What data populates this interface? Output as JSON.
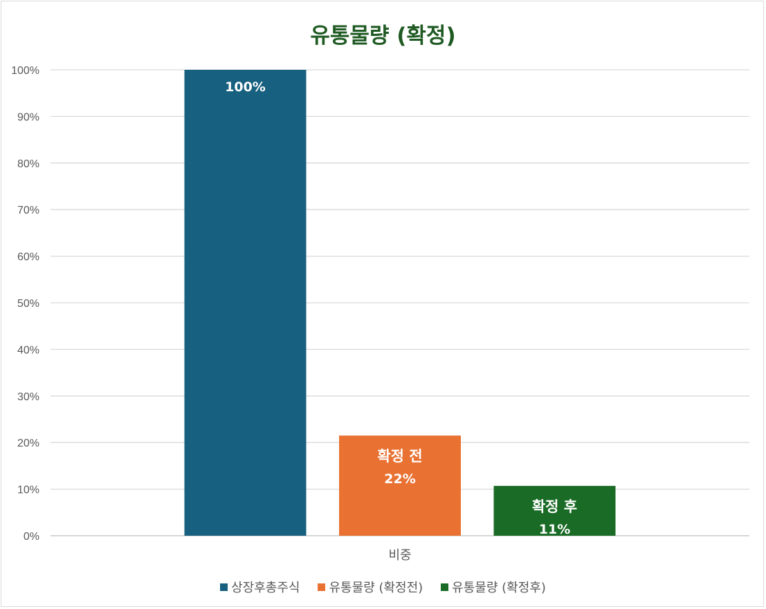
{
  "chart_data": {
    "type": "bar",
    "title": "유통물량 (확정)",
    "categories": [
      "비중"
    ],
    "ylim": [
      0,
      100
    ],
    "yticks": [
      "0%",
      "10%",
      "20%",
      "30%",
      "40%",
      "50%",
      "60%",
      "70%",
      "80%",
      "90%",
      "100%"
    ],
    "grid": true,
    "legend_position": "bottom",
    "series": [
      {
        "name": "상장후총주식",
        "values": [
          100
        ],
        "color": "#17607f",
        "data_label": "100%",
        "bar_label": ""
      },
      {
        "name": "유통물량 (확정전)",
        "values": [
          21.5
        ],
        "color": "#e97132",
        "data_label": "22%",
        "bar_label": "확정 전"
      },
      {
        "name": "유통물량 (확정후)",
        "values": [
          10.7
        ],
        "color": "#1a6b26",
        "data_label": "11%",
        "bar_label": "확정 후"
      }
    ]
  }
}
